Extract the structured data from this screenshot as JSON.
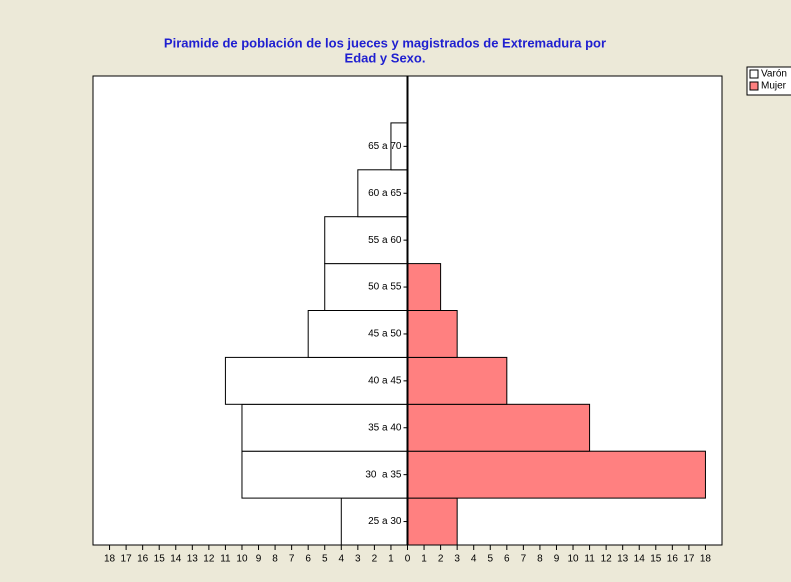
{
  "chart_data": {
    "type": "pyramid",
    "title": [
      "Piramide de población de los jueces y magistrados de Extremadura por",
      "Edad y Sexo."
    ],
    "categories": [
      "25 a 30",
      "30  a 35",
      "35 a 40",
      "40 a 45",
      "45 a 50",
      "50 a 55",
      "55 a 60",
      "60 a 65",
      "65 a 70"
    ],
    "series": [
      {
        "name": "Varón",
        "color": "#ffffff",
        "side": "left",
        "values": [
          4,
          10,
          10,
          11,
          6,
          5,
          5,
          3,
          1
        ]
      },
      {
        "name": "Mujer",
        "color": "#ff8080",
        "side": "right",
        "values": [
          3,
          18,
          11,
          6,
          3,
          2,
          0,
          0,
          0
        ]
      }
    ],
    "xlim": [
      -19,
      19
    ],
    "xticks": [
      {
        "value": -18,
        "label": "18"
      },
      {
        "value": -17,
        "label": "17"
      },
      {
        "value": -16,
        "label": "16"
      },
      {
        "value": -15,
        "label": "15"
      },
      {
        "value": -14,
        "label": "14"
      },
      {
        "value": -13,
        "label": "13"
      },
      {
        "value": -12,
        "label": "12"
      },
      {
        "value": -11,
        "label": "11"
      },
      {
        "value": -10,
        "label": "10"
      },
      {
        "value": -9,
        "label": "9"
      },
      {
        "value": -8,
        "label": "8"
      },
      {
        "value": -7,
        "label": "7"
      },
      {
        "value": -6,
        "label": "6"
      },
      {
        "value": -5,
        "label": "5"
      },
      {
        "value": -4,
        "label": "4"
      },
      {
        "value": -3,
        "label": "3"
      },
      {
        "value": -2,
        "label": "2"
      },
      {
        "value": -1,
        "label": "1"
      },
      0,
      1,
      2,
      3,
      4,
      5,
      6,
      7,
      8,
      9,
      10,
      11,
      12,
      13,
      14,
      15,
      16,
      17,
      18
    ],
    "legend": "top-right"
  }
}
